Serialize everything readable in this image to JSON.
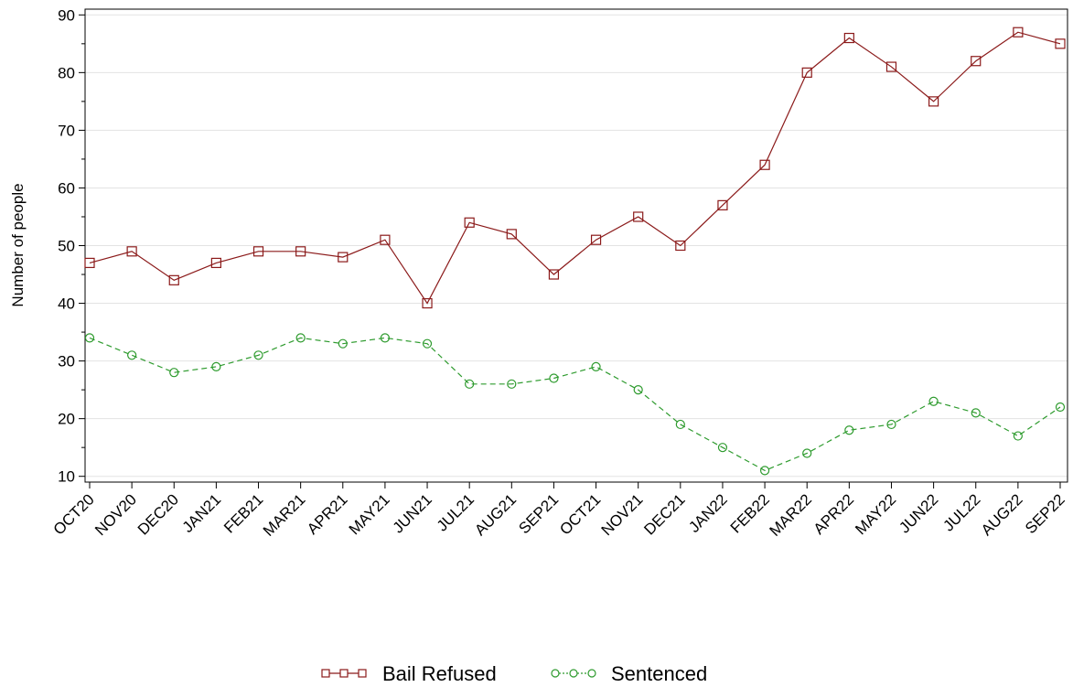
{
  "chart_data": {
    "type": "line",
    "title": "",
    "xlabel": "",
    "ylabel": "Number of people",
    "ylim": [
      9,
      91
    ],
    "yticks": [
      10,
      20,
      30,
      40,
      50,
      60,
      70,
      80,
      90
    ],
    "grid": "horizontal",
    "legend_position": "bottom-center",
    "categories": [
      "OCT20",
      "NOV20",
      "DEC20",
      "JAN21",
      "FEB21",
      "MAR21",
      "APR21",
      "MAY21",
      "JUN21",
      "JUL21",
      "AUG21",
      "SEP21",
      "OCT21",
      "NOV21",
      "DEC21",
      "JAN22",
      "FEB22",
      "MAR22",
      "APR22",
      "MAY22",
      "JUN22",
      "JUL22",
      "AUG22",
      "SEP22"
    ],
    "series": [
      {
        "name": "Bail Refused",
        "color": "#8B1A1A",
        "marker": "square",
        "line_style": "solid",
        "values": [
          47,
          49,
          44,
          47,
          49,
          49,
          48,
          51,
          40,
          54,
          52,
          45,
          51,
          55,
          50,
          57,
          64,
          80,
          86,
          81,
          75,
          82,
          87,
          85
        ]
      },
      {
        "name": "Sentenced",
        "color": "#2E9B2E",
        "marker": "circle",
        "line_style": "dashed",
        "values": [
          34,
          31,
          28,
          29,
          31,
          34,
          33,
          34,
          33,
          26,
          26,
          27,
          29,
          25,
          19,
          15,
          11,
          14,
          18,
          19,
          23,
          21,
          17,
          22
        ]
      }
    ]
  }
}
